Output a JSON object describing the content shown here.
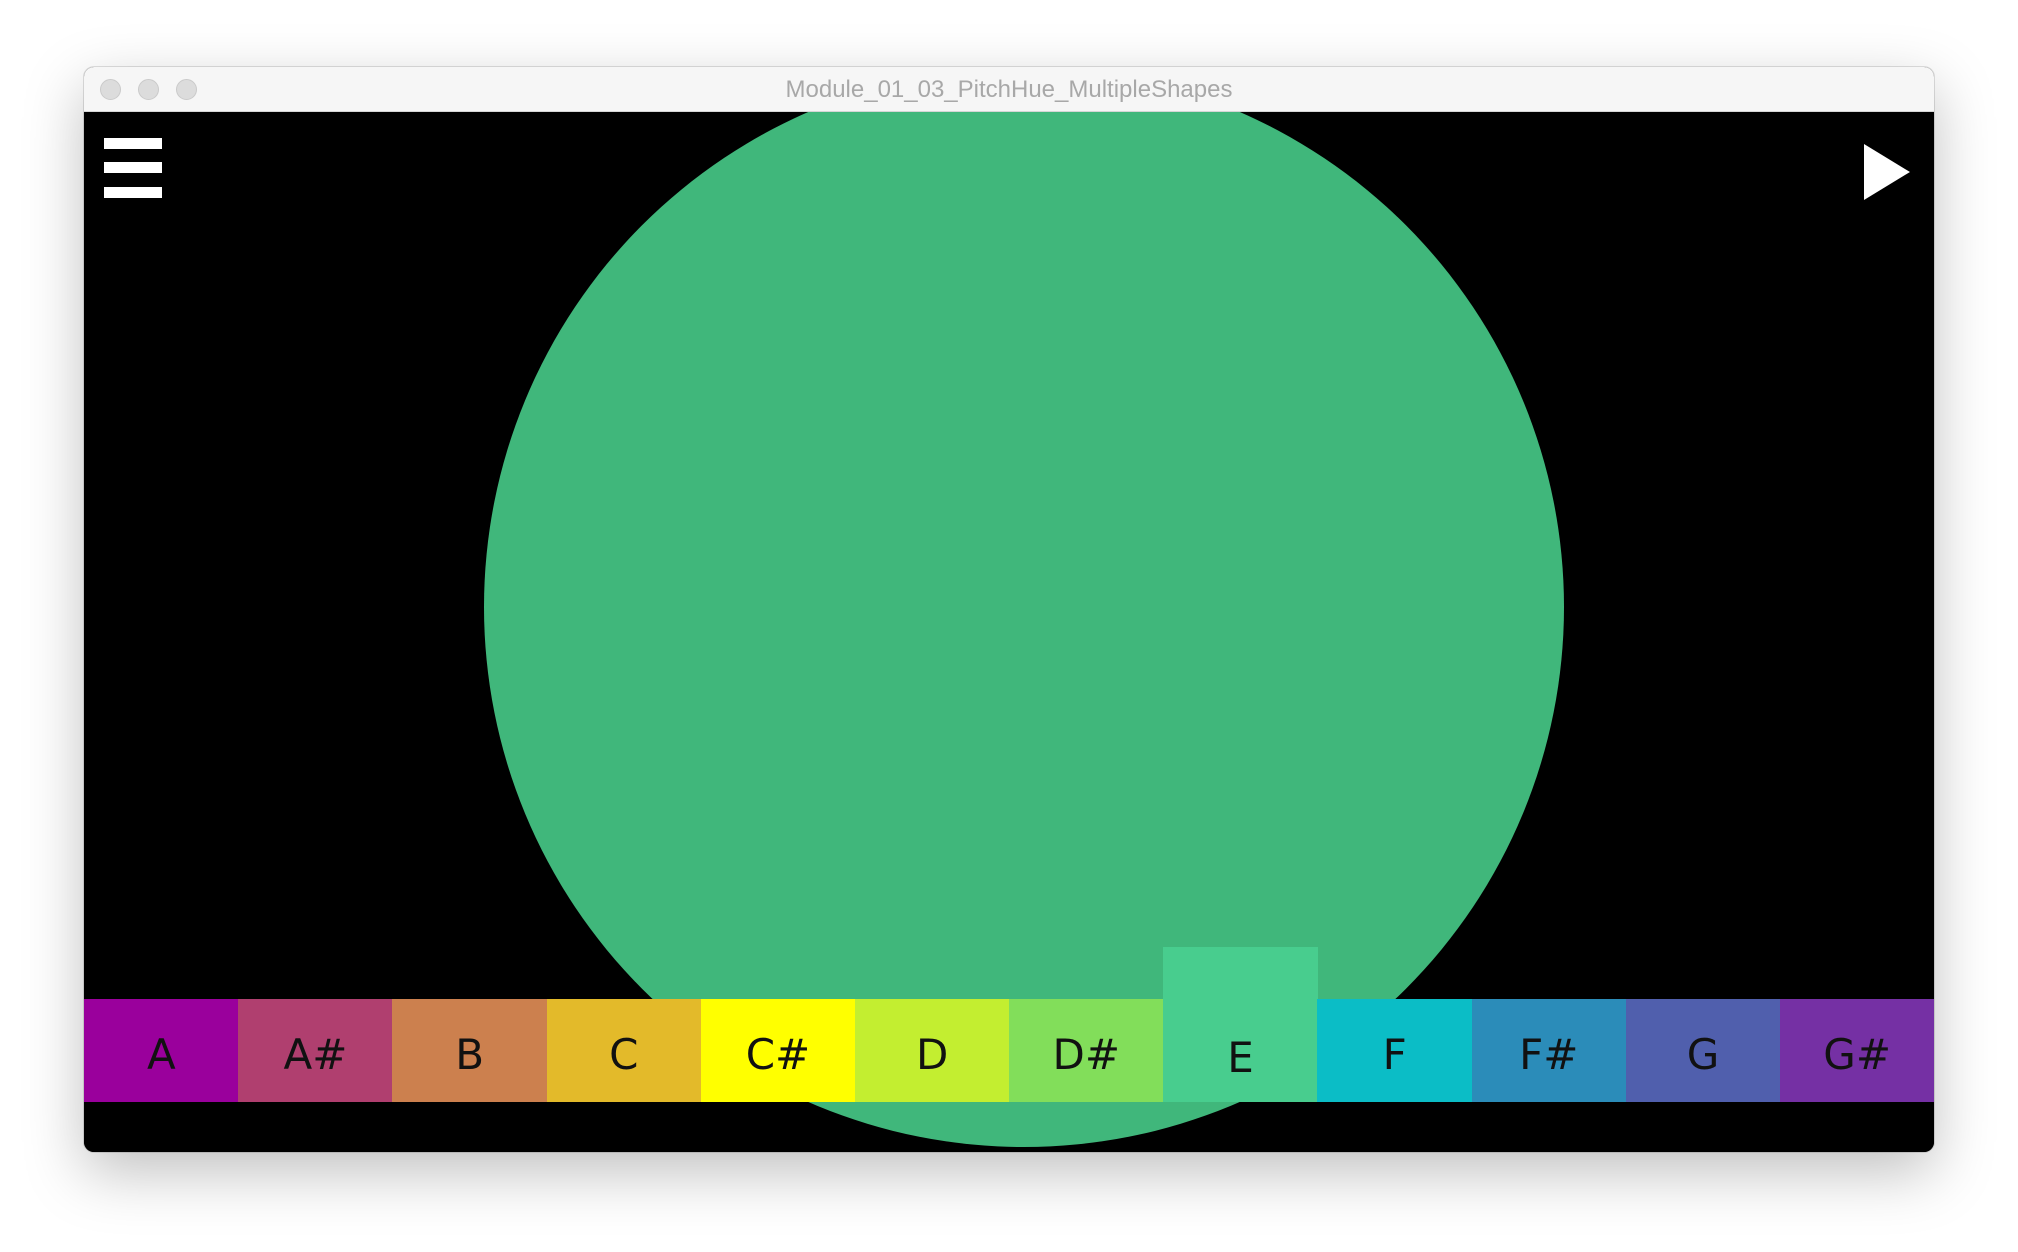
{
  "window": {
    "title": "Module_01_03_PitchHue_MultipleShapes"
  },
  "canvas": {
    "background": "#000000",
    "circle_color": "#40b77b"
  },
  "icons": {
    "menu": "hamburger-menu-icon",
    "play": "play-icon"
  },
  "keys": [
    {
      "label": "A",
      "color": "#9a009c"
    },
    {
      "label": "A#",
      "color": "#b03f6f"
    },
    {
      "label": "B",
      "color": "#cc804e"
    },
    {
      "label": "C",
      "color": "#e3ba2a"
    },
    {
      "label": "C#",
      "color": "#ffff00"
    },
    {
      "label": "D",
      "color": "#c3ee30"
    },
    {
      "label": "D#",
      "color": "#82de5a"
    },
    {
      "label": "E",
      "color": "#48cd8e",
      "active": true
    },
    {
      "label": "F",
      "color": "#0bbdc6"
    },
    {
      "label": "F#",
      "color": "#2b8cb9"
    },
    {
      "label": "G",
      "color": "#505fad"
    },
    {
      "label": "G#",
      "color": "#7530a4"
    }
  ]
}
